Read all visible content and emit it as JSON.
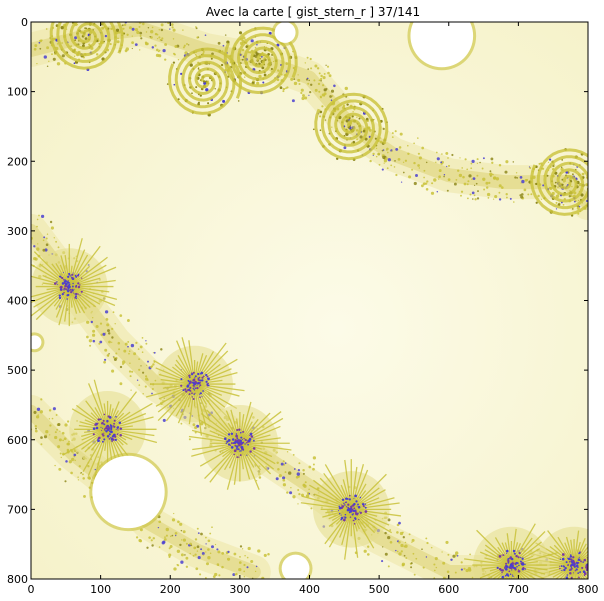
{
  "chart_data": {
    "type": "heatmap",
    "title": "Avec la carte   [ gist_stern_r ]   37/141",
    "colormap": "gist_stern_r",
    "x_ticks": [
      0,
      100,
      200,
      300,
      400,
      500,
      600,
      700,
      800
    ],
    "y_ticks": [
      0,
      100,
      200,
      300,
      400,
      500,
      600,
      700,
      800
    ],
    "xlim": [
      0,
      800
    ],
    "ylim": [
      800,
      0
    ],
    "y_axis_inverted": true,
    "grid": false,
    "colors": {
      "background_light": "#fbf9e4",
      "fractal_yellow": "#c9c23a",
      "fractal_olive": "#8f8a1e",
      "fractal_blue": "#4a3fd0",
      "fractal_purple": "#7a3aa0",
      "interior_white": "#ffffff"
    },
    "features": {
      "spiral_centers": [
        [
          80,
          20
        ],
        [
          250,
          85
        ],
        [
          460,
          150
        ],
        [
          770,
          230
        ],
        [
          330,
          55
        ]
      ],
      "dense_nodes": [
        [
          55,
          380
        ],
        [
          235,
          520
        ],
        [
          460,
          700
        ],
        [
          780,
          780
        ],
        [
          690,
          780
        ],
        [
          300,
          605
        ],
        [
          110,
          585
        ]
      ],
      "white_disks": [
        [
          140,
          675,
          52
        ],
        [
          590,
          20,
          45
        ],
        [
          365,
          15,
          15
        ],
        [
          380,
          785,
          20
        ],
        [
          5,
          460,
          10
        ]
      ],
      "filament_paths": [
        [
          [
            0,
            300
          ],
          [
            60,
            380
          ],
          [
            120,
            460
          ],
          [
            180,
            520
          ],
          [
            240,
            560
          ],
          [
            330,
            620
          ],
          [
            420,
            680
          ],
          [
            500,
            740
          ],
          [
            600,
            790
          ],
          [
            680,
            790
          ],
          [
            800,
            780
          ]
        ],
        [
          [
            0,
            40
          ],
          [
            80,
            20
          ],
          [
            160,
            10
          ],
          [
            250,
            40
          ],
          [
            330,
            55
          ],
          [
            400,
            80
          ],
          [
            460,
            150
          ],
          [
            520,
            190
          ],
          [
            600,
            220
          ],
          [
            680,
            230
          ],
          [
            770,
            230
          ],
          [
            800,
            260
          ]
        ],
        [
          [
            0,
            560
          ],
          [
            60,
            620
          ],
          [
            110,
            660
          ],
          [
            170,
            720
          ],
          [
            240,
            760
          ],
          [
            320,
            790
          ]
        ]
      ]
    }
  }
}
